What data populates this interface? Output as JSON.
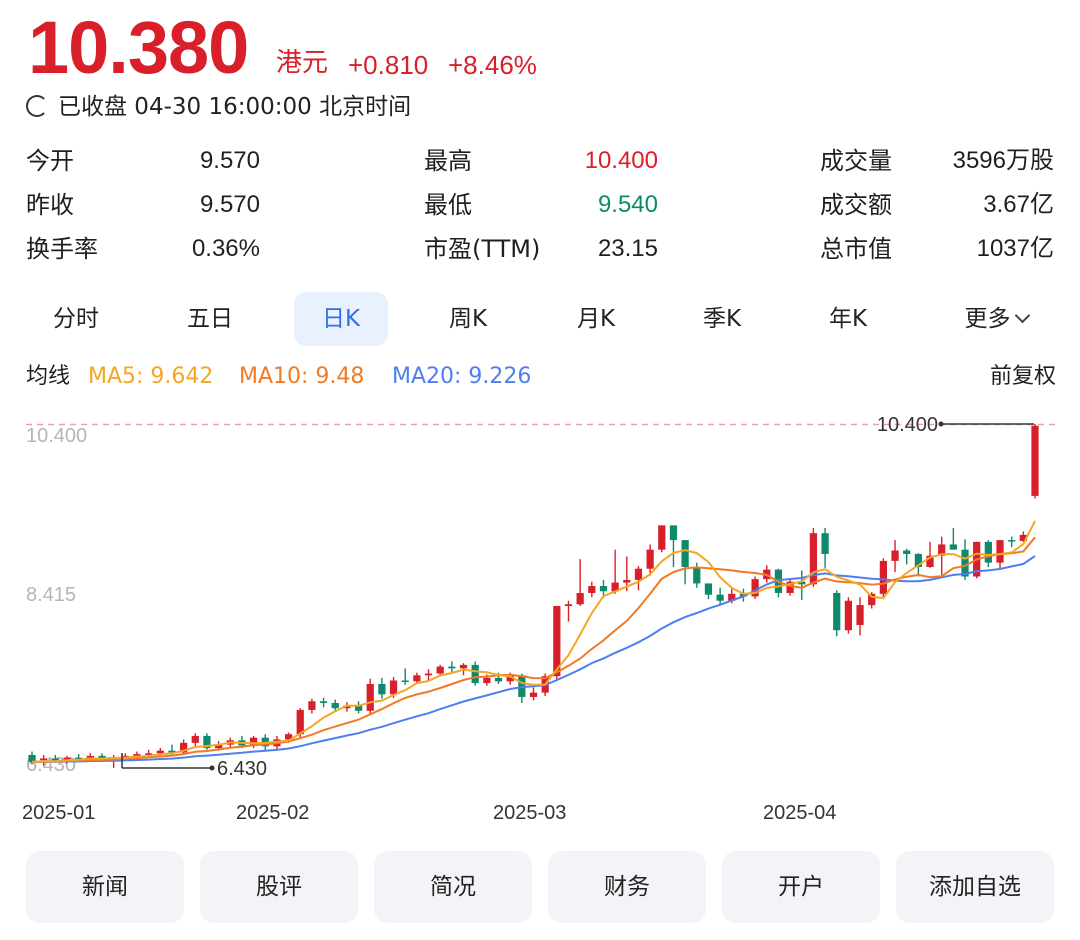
{
  "quote": {
    "price": "10.380",
    "currency": "港元",
    "change": "+0.810",
    "change_pct": "+8.46%",
    "status": "已收盘 04-30 16:00:00 北京时间"
  },
  "stats": [
    {
      "label": "今开",
      "value": "9.570",
      "color": "#1f1f1f"
    },
    {
      "label": "最高",
      "value": "10.400",
      "color": "#d91f2a"
    },
    {
      "label": "成交量",
      "value": "3596万股",
      "color": "#1f1f1f"
    },
    {
      "label": "昨收",
      "value": "9.570",
      "color": "#1f1f1f"
    },
    {
      "label": "最低",
      "value": "9.540",
      "color": "#0e8a6a"
    },
    {
      "label": "成交额",
      "value": "3.67亿",
      "color": "#1f1f1f"
    },
    {
      "label": "换手率",
      "value": "0.36%",
      "color": "#1f1f1f"
    },
    {
      "label": "市盈(TTM)",
      "value": "23.15",
      "color": "#1f1f1f"
    },
    {
      "label": "总市值",
      "value": "1037亿",
      "color": "#1f1f1f"
    }
  ],
  "tabs": [
    {
      "label": "分时",
      "active": false
    },
    {
      "label": "五日",
      "active": false
    },
    {
      "label": "日K",
      "active": true
    },
    {
      "label": "周K",
      "active": false
    },
    {
      "label": "月K",
      "active": false
    },
    {
      "label": "季K",
      "active": false
    },
    {
      "label": "年K",
      "active": false
    },
    {
      "label": "更多",
      "active": false,
      "icon": "chevron-down-icon"
    }
  ],
  "ma": {
    "title": "均线",
    "ma5": "MA5: 9.642",
    "ma10": "MA10: 9.48",
    "ma20": "MA20: 9.226",
    "adjust": "前复权",
    "colors": {
      "ma5": "#f5a623",
      "ma10": "#f07b24",
      "ma20": "#4f7ef0"
    }
  },
  "colors": {
    "up": "#d91f2a",
    "down": "#0e8a6a",
    "accent": "#2f6fe8"
  },
  "chart_data": {
    "type": "candlestick",
    "y_tick_labels": [
      "10.400",
      "8.415",
      "6.430"
    ],
    "x_tick_labels": [
      "2025-01",
      "2025-02",
      "2025-03",
      "2025-04"
    ],
    "max_marker": "10.400",
    "min_marker": "6.430",
    "ylim": [
      6.43,
      10.4
    ],
    "candles": [
      {
        "o": 6.58,
        "h": 6.62,
        "l": 6.47,
        "c": 6.5
      },
      {
        "o": 6.52,
        "h": 6.58,
        "l": 6.46,
        "c": 6.54
      },
      {
        "o": 6.54,
        "h": 6.58,
        "l": 6.49,
        "c": 6.51
      },
      {
        "o": 6.51,
        "h": 6.57,
        "l": 6.48,
        "c": 6.55
      },
      {
        "o": 6.55,
        "h": 6.59,
        "l": 6.51,
        "c": 6.53
      },
      {
        "o": 6.53,
        "h": 6.6,
        "l": 6.5,
        "c": 6.57
      },
      {
        "o": 6.57,
        "h": 6.6,
        "l": 6.52,
        "c": 6.53
      },
      {
        "o": 6.53,
        "h": 6.58,
        "l": 6.43,
        "c": 6.55
      },
      {
        "o": 6.55,
        "h": 6.6,
        "l": 6.52,
        "c": 6.57
      },
      {
        "o": 6.57,
        "h": 6.62,
        "l": 6.54,
        "c": 6.59
      },
      {
        "o": 6.59,
        "h": 6.64,
        "l": 6.55,
        "c": 6.6
      },
      {
        "o": 6.6,
        "h": 6.66,
        "l": 6.57,
        "c": 6.63
      },
      {
        "o": 6.63,
        "h": 6.7,
        "l": 6.58,
        "c": 6.61
      },
      {
        "o": 6.61,
        "h": 6.76,
        "l": 6.59,
        "c": 6.72
      },
      {
        "o": 6.72,
        "h": 6.83,
        "l": 6.68,
        "c": 6.8
      },
      {
        "o": 6.8,
        "h": 6.83,
        "l": 6.64,
        "c": 6.66
      },
      {
        "o": 6.66,
        "h": 6.74,
        "l": 6.63,
        "c": 6.7
      },
      {
        "o": 6.7,
        "h": 6.78,
        "l": 6.67,
        "c": 6.75
      },
      {
        "o": 6.75,
        "h": 6.8,
        "l": 6.66,
        "c": 6.69
      },
      {
        "o": 6.69,
        "h": 6.8,
        "l": 6.66,
        "c": 6.78
      },
      {
        "o": 6.78,
        "h": 6.82,
        "l": 6.63,
        "c": 6.68
      },
      {
        "o": 6.68,
        "h": 6.8,
        "l": 6.65,
        "c": 6.76
      },
      {
        "o": 6.76,
        "h": 6.84,
        "l": 6.72,
        "c": 6.82
      },
      {
        "o": 6.82,
        "h": 7.12,
        "l": 6.78,
        "c": 7.1
      },
      {
        "o": 7.1,
        "h": 7.23,
        "l": 7.06,
        "c": 7.2
      },
      {
        "o": 7.2,
        "h": 7.24,
        "l": 7.13,
        "c": 7.18
      },
      {
        "o": 7.18,
        "h": 7.22,
        "l": 7.09,
        "c": 7.12
      },
      {
        "o": 7.12,
        "h": 7.19,
        "l": 7.08,
        "c": 7.15
      },
      {
        "o": 7.15,
        "h": 7.2,
        "l": 7.06,
        "c": 7.09
      },
      {
        "o": 7.09,
        "h": 7.46,
        "l": 7.06,
        "c": 7.4
      },
      {
        "o": 7.4,
        "h": 7.47,
        "l": 7.23,
        "c": 7.28
      },
      {
        "o": 7.28,
        "h": 7.48,
        "l": 7.24,
        "c": 7.44
      },
      {
        "o": 7.44,
        "h": 7.58,
        "l": 7.39,
        "c": 7.43
      },
      {
        "o": 7.43,
        "h": 7.53,
        "l": 7.4,
        "c": 7.5
      },
      {
        "o": 7.5,
        "h": 7.57,
        "l": 7.44,
        "c": 7.52
      },
      {
        "o": 7.52,
        "h": 7.62,
        "l": 7.49,
        "c": 7.6
      },
      {
        "o": 7.6,
        "h": 7.66,
        "l": 7.53,
        "c": 7.58
      },
      {
        "o": 7.58,
        "h": 7.64,
        "l": 7.5,
        "c": 7.62
      },
      {
        "o": 7.62,
        "h": 7.66,
        "l": 7.38,
        "c": 7.41
      },
      {
        "o": 7.41,
        "h": 7.51,
        "l": 7.38,
        "c": 7.47
      },
      {
        "o": 7.47,
        "h": 7.53,
        "l": 7.4,
        "c": 7.43
      },
      {
        "o": 7.43,
        "h": 7.53,
        "l": 7.39,
        "c": 7.5
      },
      {
        "o": 7.5,
        "h": 7.52,
        "l": 7.18,
        "c": 7.25
      },
      {
        "o": 7.25,
        "h": 7.36,
        "l": 7.21,
        "c": 7.3
      },
      {
        "o": 7.3,
        "h": 7.52,
        "l": 7.26,
        "c": 7.49
      },
      {
        "o": 7.49,
        "h": 8.3,
        "l": 7.45,
        "c": 8.3
      },
      {
        "o": 8.3,
        "h": 8.36,
        "l": 8.12,
        "c": 8.32
      },
      {
        "o": 8.32,
        "h": 8.84,
        "l": 8.3,
        "c": 8.45
      },
      {
        "o": 8.45,
        "h": 8.58,
        "l": 8.4,
        "c": 8.53
      },
      {
        "o": 8.53,
        "h": 8.6,
        "l": 8.39,
        "c": 8.47
      },
      {
        "o": 8.47,
        "h": 8.95,
        "l": 8.44,
        "c": 8.57
      },
      {
        "o": 8.57,
        "h": 8.87,
        "l": 8.47,
        "c": 8.6
      },
      {
        "o": 8.6,
        "h": 8.76,
        "l": 8.48,
        "c": 8.73
      },
      {
        "o": 8.73,
        "h": 9.01,
        "l": 8.65,
        "c": 8.95
      },
      {
        "o": 8.95,
        "h": 9.23,
        "l": 8.92,
        "c": 9.23
      },
      {
        "o": 9.23,
        "h": 9.23,
        "l": 8.75,
        "c": 9.06
      },
      {
        "o": 9.06,
        "h": 9.04,
        "l": 8.55,
        "c": 8.75
      },
      {
        "o": 8.75,
        "h": 8.8,
        "l": 8.51,
        "c": 8.56
      },
      {
        "o": 8.56,
        "h": 8.56,
        "l": 8.38,
        "c": 8.43
      },
      {
        "o": 8.43,
        "h": 8.51,
        "l": 8.32,
        "c": 8.36
      },
      {
        "o": 8.36,
        "h": 8.5,
        "l": 8.33,
        "c": 8.44
      },
      {
        "o": 8.44,
        "h": 8.5,
        "l": 8.35,
        "c": 8.41
      },
      {
        "o": 8.41,
        "h": 8.64,
        "l": 8.38,
        "c": 8.61
      },
      {
        "o": 8.61,
        "h": 8.77,
        "l": 8.57,
        "c": 8.72
      },
      {
        "o": 8.72,
        "h": 8.73,
        "l": 8.4,
        "c": 8.45
      },
      {
        "o": 8.45,
        "h": 8.61,
        "l": 8.42,
        "c": 8.58
      },
      {
        "o": 8.58,
        "h": 8.71,
        "l": 8.37,
        "c": 8.55
      },
      {
        "o": 8.55,
        "h": 9.2,
        "l": 8.52,
        "c": 9.14
      },
      {
        "o": 9.14,
        "h": 9.2,
        "l": 8.74,
        "c": 8.9
      },
      {
        "o": 8.45,
        "h": 8.48,
        "l": 7.95,
        "c": 8.02
      },
      {
        "o": 8.02,
        "h": 8.4,
        "l": 7.98,
        "c": 8.36
      },
      {
        "o": 8.08,
        "h": 8.4,
        "l": 7.96,
        "c": 8.31
      },
      {
        "o": 8.31,
        "h": 8.46,
        "l": 8.27,
        "c": 8.44
      },
      {
        "o": 8.44,
        "h": 8.85,
        "l": 8.4,
        "c": 8.82
      },
      {
        "o": 8.82,
        "h": 9.06,
        "l": 8.69,
        "c": 8.94
      },
      {
        "o": 8.94,
        "h": 8.96,
        "l": 8.78,
        "c": 8.9
      },
      {
        "o": 8.9,
        "h": 8.91,
        "l": 8.64,
        "c": 8.75
      },
      {
        "o": 8.75,
        "h": 9.04,
        "l": 8.74,
        "c": 8.88
      },
      {
        "o": 8.88,
        "h": 9.1,
        "l": 8.66,
        "c": 9.01
      },
      {
        "o": 9.01,
        "h": 9.2,
        "l": 8.95,
        "c": 8.95
      },
      {
        "o": 8.95,
        "h": 9.07,
        "l": 8.6,
        "c": 8.64
      },
      {
        "o": 8.64,
        "h": 9.04,
        "l": 8.62,
        "c": 9.04
      },
      {
        "o": 9.04,
        "h": 9.06,
        "l": 8.75,
        "c": 8.8
      },
      {
        "o": 8.8,
        "h": 9.06,
        "l": 8.72,
        "c": 9.06
      },
      {
        "o": 9.06,
        "h": 9.1,
        "l": 8.98,
        "c": 9.05
      },
      {
        "o": 9.05,
        "h": 9.16,
        "l": 9.04,
        "c": 9.12
      },
      {
        "o": 9.57,
        "h": 10.4,
        "l": 9.54,
        "c": 10.38
      }
    ]
  },
  "bottom_buttons": [
    "新闻",
    "股评",
    "简况",
    "财务",
    "开户",
    "添加自选"
  ]
}
